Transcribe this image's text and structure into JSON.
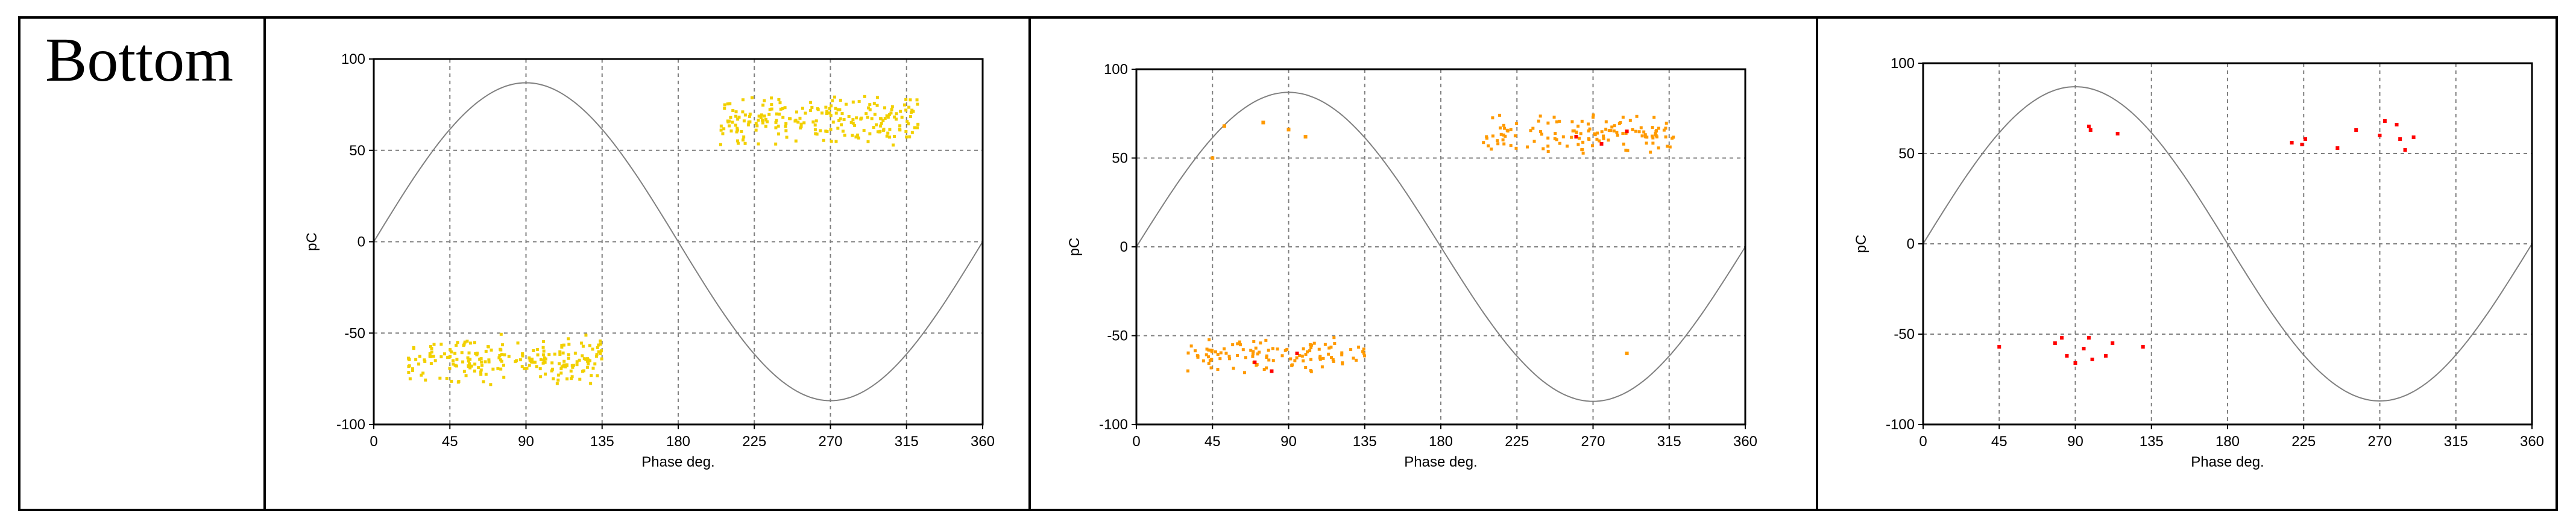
{
  "row_label": "Bottom",
  "colors": {
    "yellow": "#f2d000",
    "orange": "#ff9a00",
    "red": "#ff0000",
    "sine": "#808080",
    "grid": "#808080"
  },
  "chart_data": [
    {
      "type": "scatter",
      "xlabel": "Phase deg.",
      "ylabel": "pC",
      "xlim": [
        0,
        360
      ],
      "ylim": [
        -100,
        100
      ],
      "xticks": [
        0,
        45,
        90,
        135,
        180,
        225,
        270,
        315,
        360
      ],
      "yticks": [
        100,
        50,
        0,
        -50,
        -100
      ],
      "grid": true,
      "reference_sine": {
        "amplitude": 87
      },
      "series": [
        {
          "color": "yellow",
          "clusters": [
            {
              "x_range": [
                20,
                135
              ],
              "y_range": [
                -80,
                -50
              ],
              "count": 220
            },
            {
              "x_range": [
                205,
                325
              ],
              "y_range": [
                52,
                82
              ],
              "count": 220
            }
          ],
          "points": []
        }
      ]
    },
    {
      "type": "scatter",
      "xlabel": "Phase deg.",
      "ylabel": "pC",
      "xlim": [
        0,
        360
      ],
      "ylim": [
        -100,
        100
      ],
      "xticks": [
        0,
        45,
        90,
        135,
        180,
        225,
        270,
        315,
        360
      ],
      "yticks": [
        100,
        50,
        0,
        -50,
        -100
      ],
      "grid": true,
      "reference_sine": {
        "amplitude": 87
      },
      "series": [
        {
          "color": "orange",
          "clusters": [
            {
              "x_range": [
                30,
                135
              ],
              "y_range": [
                -72,
                -50
              ],
              "count": 110
            },
            {
              "x_range": [
                205,
                320
              ],
              "y_range": [
                52,
                76
              ],
              "count": 130
            }
          ],
          "points": [
            {
              "x": 45,
              "y": 50
            },
            {
              "x": 52,
              "y": 68
            },
            {
              "x": 75,
              "y": 70
            },
            {
              "x": 90,
              "y": 66
            },
            {
              "x": 100,
              "y": 62
            },
            {
              "x": 290,
              "y": -60
            }
          ]
        },
        {
          "color": "red",
          "clusters": [],
          "points": [
            {
              "x": 70,
              "y": -65
            },
            {
              "x": 80,
              "y": -70
            },
            {
              "x": 95,
              "y": -60
            },
            {
              "x": 260,
              "y": 62
            },
            {
              "x": 275,
              "y": 58
            },
            {
              "x": 290,
              "y": 65
            }
          ]
        }
      ]
    },
    {
      "type": "scatter",
      "xlabel": "Phase deg.",
      "ylabel": "pC",
      "xlim": [
        0,
        360
      ],
      "ylim": [
        -100,
        100
      ],
      "xticks": [
        0,
        45,
        90,
        135,
        180,
        225,
        270,
        315,
        360
      ],
      "yticks": [
        100,
        50,
        0,
        -50,
        -100
      ],
      "grid": true,
      "reference_sine": {
        "amplitude": 87
      },
      "series": [
        {
          "color": "red",
          "clusters": [],
          "points": [
            {
              "x": 45,
              "y": -57
            },
            {
              "x": 78,
              "y": -55
            },
            {
              "x": 82,
              "y": -52
            },
            {
              "x": 85,
              "y": -62
            },
            {
              "x": 90,
              "y": -66
            },
            {
              "x": 95,
              "y": -58
            },
            {
              "x": 98,
              "y": -52
            },
            {
              "x": 100,
              "y": -64
            },
            {
              "x": 108,
              "y": -62
            },
            {
              "x": 112,
              "y": -55
            },
            {
              "x": 130,
              "y": -57
            },
            {
              "x": 98,
              "y": 65
            },
            {
              "x": 99,
              "y": 63
            },
            {
              "x": 115,
              "y": 61
            },
            {
              "x": 218,
              "y": 56
            },
            {
              "x": 224,
              "y": 55
            },
            {
              "x": 226,
              "y": 58
            },
            {
              "x": 245,
              "y": 53
            },
            {
              "x": 256,
              "y": 63
            },
            {
              "x": 270,
              "y": 60
            },
            {
              "x": 273,
              "y": 68
            },
            {
              "x": 280,
              "y": 66
            },
            {
              "x": 285,
              "y": 52
            },
            {
              "x": 282,
              "y": 58
            },
            {
              "x": 290,
              "y": 59
            }
          ]
        }
      ]
    }
  ]
}
